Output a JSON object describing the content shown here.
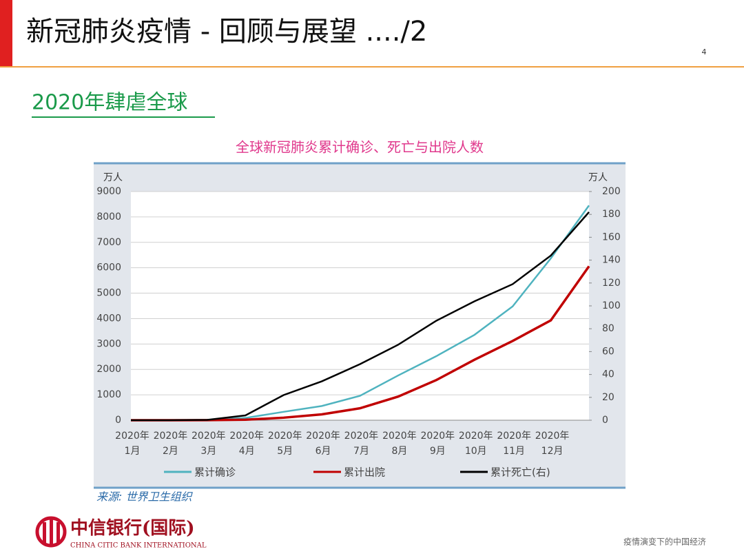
{
  "slide": {
    "title": "新冠肺炎疫情 - 回顾与展望 ..../2",
    "page_number": "4",
    "subtitle": "2020年肆虐全球",
    "bank_name": "中信银行(国际)",
    "bank_name_en": "CHINA CITIC BANK INTERNATIONAL",
    "footer": "疫情演变下的中国经济"
  },
  "chart_data": {
    "type": "line",
    "title": "全球新冠肺炎累计确诊、死亡与出院人数",
    "y_unit": "万人",
    "y2_unit": "万人",
    "source": "来源: 世界卫生组织",
    "categories": [
      "2020年1月",
      "2020年2月",
      "2020年3月",
      "2020年4月",
      "2020年5月",
      "2020年6月",
      "2020年7月",
      "2020年8月",
      "2020年9月",
      "2020年10月",
      "2020年11月",
      "2020年12月",
      null
    ],
    "series": [
      {
        "name": "累计确诊",
        "color": "#4fb3bf",
        "values": [
          0,
          1,
          8,
          90,
          330,
          560,
          960,
          1760,
          2520,
          3360,
          4480,
          6370,
          8450
        ]
      },
      {
        "name": "累计出院",
        "color": "#c00000",
        "values": [
          0,
          0,
          3,
          20,
          100,
          230,
          470,
          930,
          1580,
          2380,
          3120,
          3930,
          6060
        ]
      },
      {
        "name": "累计死亡(右)",
        "color": "#000000",
        "axis": "y2",
        "values": [
          0,
          0.02,
          0.3,
          4.2,
          22,
          34,
          49,
          66,
          87,
          104,
          119,
          144,
          182
        ]
      }
    ],
    "ylim": [
      0,
      9000
    ],
    "yticks": [
      0,
      1000,
      2000,
      3000,
      4000,
      5000,
      6000,
      7000,
      8000,
      9000
    ],
    "y2lim": [
      0,
      200
    ],
    "y2ticks": [
      0,
      20,
      40,
      60,
      80,
      100,
      120,
      140,
      160,
      180,
      200
    ],
    "grid": true
  }
}
